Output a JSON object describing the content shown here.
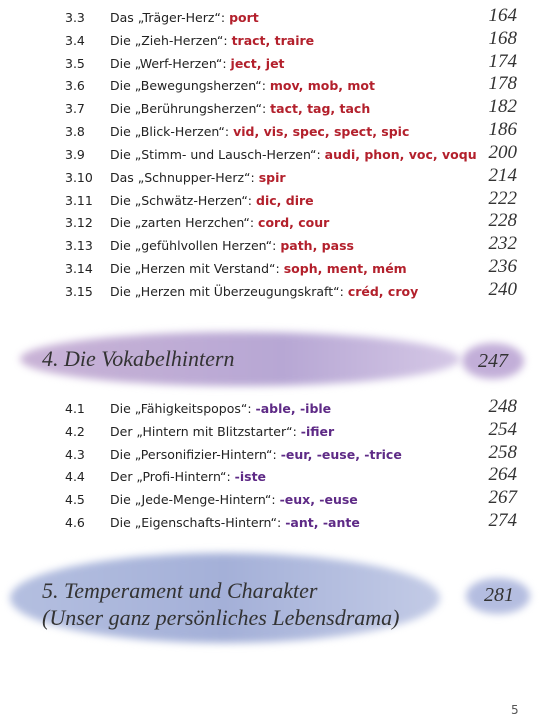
{
  "sections": [
    {
      "entries": [
        {
          "number": "3.3",
          "label": "Das „Träger-Herz“:",
          "keywords": "port",
          "page": "164"
        },
        {
          "number": "3.4",
          "label": "Die „Zieh-Herzen“:",
          "keywords": "tract, traire",
          "page": "168"
        },
        {
          "number": "3.5",
          "label": "Die „Werf-Herzen“:",
          "keywords": "ject, jet",
          "page": "174"
        },
        {
          "number": "3.6",
          "label": "Die „Bewegungsherzen“:",
          "keywords": "mov, mob, mot",
          "page": "178"
        },
        {
          "number": "3.7",
          "label": "Die „Berührungsherzen“:",
          "keywords": "tact, tag, tach",
          "page": "182"
        },
        {
          "number": "3.8",
          "label": "Die „Blick-Herzen“:",
          "keywords": "vid, vis, spec, spect, spic",
          "page": "186"
        },
        {
          "number": "3.9",
          "label": "Die „Stimm- und Lausch-Herzen“:",
          "keywords": "audi, phon, voc, voqu",
          "page": "200"
        },
        {
          "number": "3.10",
          "label": "Das „Schnupper-Herz“:",
          "keywords": "spir",
          "page": "214"
        },
        {
          "number": "3.11",
          "label": "Die „Schwätz-Herzen“:",
          "keywords": "dic, dire",
          "page": "222"
        },
        {
          "number": "3.12",
          "label": "Die „zarten Herzchen“:",
          "keywords": "cord, cour",
          "page": "228"
        },
        {
          "number": "3.13",
          "label": "Die „gefühlvollen Herzen“:",
          "keywords": "path, pass",
          "page": "232"
        },
        {
          "number": "3.14",
          "label": "Die „Herzen mit Verstand“:",
          "keywords": "soph, ment, mém",
          "page": "236"
        },
        {
          "number": "3.15",
          "label": "Die „Herzen mit Überzeugungskraft“:",
          "keywords": "créd, croy",
          "page": "240"
        }
      ]
    },
    {
      "title": "4. Die Vokabelhintern",
      "page": "247",
      "entries": [
        {
          "number": "4.1",
          "label": "Die „Fähigkeitspopos“:",
          "keywords": "-able, -ible",
          "page": "248"
        },
        {
          "number": "4.2",
          "label": "Der „Hintern mit Blitzstarter“:",
          "keywords": "-ifier",
          "page": "254"
        },
        {
          "number": "4.3",
          "label": "Die „Personifizier-Hintern“:",
          "keywords": "-eur, -euse, -trice",
          "page": "258"
        },
        {
          "number": "4.4",
          "label": "Der „Profi-Hintern“:",
          "keywords": "-iste",
          "page": "264"
        },
        {
          "number": "4.5",
          "label": "Die „Jede-Menge-Hintern“:",
          "keywords": "-eux, -euse",
          "page": "267"
        },
        {
          "number": "4.6",
          "label": "Die „Eigenschafts-Hintern“:",
          "keywords": "-ant, -ante",
          "page": "274"
        }
      ]
    },
    {
      "title_lines": [
        "5. Temperament und Charakter",
        "(Unser ganz persönliches Lebensdrama)"
      ],
      "page": "281"
    }
  ],
  "page_number": "5"
}
